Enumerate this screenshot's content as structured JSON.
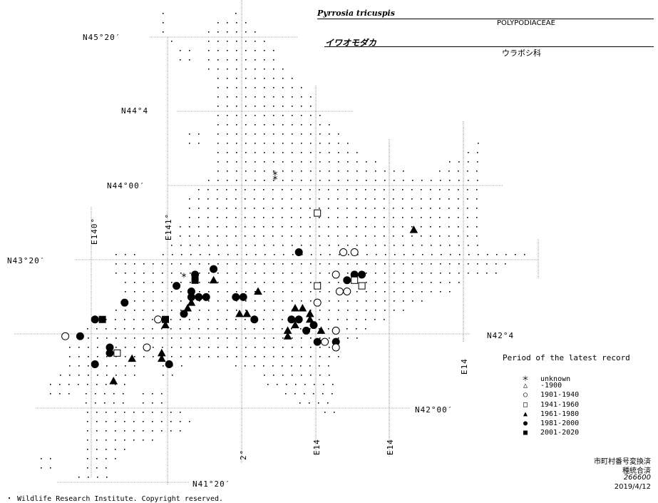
{
  "header": {
    "scientific_name": "Pyrrosia tricuspis",
    "family_latin": "POLYPODIACEAE",
    "japanese_name": "イワオモダカ",
    "family_japanese": "ウラボシ科"
  },
  "grid_labels": {
    "lat_45_20": "N45°20′",
    "lat_44_40": "N44°4",
    "lat_44_00": "N44°00′",
    "lat_43_20": "N43°20′",
    "lat_42_40": "N42°4",
    "lat_42_00": "N42°00′",
    "lat_41_20": "N41°20′",
    "lon_140": "E140°",
    "lon_141": "E141°",
    "lon_142": "2°",
    "lon_143": "E14",
    "lon_144": "E14",
    "lon_145": "E14"
  },
  "legend": {
    "title": "Period of the latest record",
    "items": [
      {
        "symbol": "asterisk",
        "glyph": "＊",
        "label": "unknown"
      },
      {
        "symbol": "open-triangle",
        "glyph": "△",
        "label": "-1900"
      },
      {
        "symbol": "open-circle",
        "glyph": "○",
        "label": "1901-1940"
      },
      {
        "symbol": "open-square",
        "glyph": "□",
        "label": "1941-1960"
      },
      {
        "symbol": "filled-triangle",
        "glyph": "▲",
        "label": "1961-1980"
      },
      {
        "symbol": "filled-circle",
        "glyph": "●",
        "label": "1981-2000"
      },
      {
        "symbol": "filled-square",
        "glyph": "■",
        "label": "2001-2020"
      }
    ]
  },
  "status": {
    "line1": "市町村番号変換済",
    "line2": "種統合済",
    "line3": "266600",
    "date": "2019/4/12"
  },
  "footer": {
    "copyright": "・ Wildlife Research Institute. Copyright reserved."
  },
  "records": [
    {
      "type": "asterisk",
      "lat": 44.09,
      "lon": 142.48
    },
    {
      "type": "asterisk",
      "lat": 44.05,
      "lon": 142.48
    },
    {
      "type": "asterisk",
      "lat": 43.18,
      "lon": 141.25
    },
    {
      "type": "filled-triangle",
      "lat": 43.6,
      "lon": 144.35
    },
    {
      "type": "open-square",
      "lat": 43.75,
      "lon": 143.05
    },
    {
      "type": "filled-circle",
      "lat": 43.4,
      "lon": 142.8
    },
    {
      "type": "open-circle",
      "lat": 43.4,
      "lon": 143.4
    },
    {
      "type": "open-circle",
      "lat": 43.4,
      "lon": 143.55
    },
    {
      "type": "filled-circle",
      "lat": 43.25,
      "lon": 141.65
    },
    {
      "type": "filled-circle",
      "lat": 43.2,
      "lon": 141.4
    },
    {
      "type": "filled-square",
      "lat": 43.15,
      "lon": 141.4
    },
    {
      "type": "filled-triangle",
      "lat": 43.15,
      "lon": 141.65
    },
    {
      "type": "filled-circle",
      "lat": 43.1,
      "lon": 141.15
    },
    {
      "type": "filled-circle",
      "lat": 43.05,
      "lon": 141.35
    },
    {
      "type": "filled-circle",
      "lat": 43.0,
      "lon": 141.35
    },
    {
      "type": "filled-circle",
      "lat": 43.0,
      "lon": 141.45
    },
    {
      "type": "filled-circle",
      "lat": 43.0,
      "lon": 141.55
    },
    {
      "type": "filled-triangle",
      "lat": 42.95,
      "lon": 141.35
    },
    {
      "type": "filled-triangle",
      "lat": 42.9,
      "lon": 141.3
    },
    {
      "type": "filled-circle",
      "lat": 42.85,
      "lon": 141.25
    },
    {
      "type": "filled-circle",
      "lat": 43.0,
      "lon": 141.95
    },
    {
      "type": "filled-circle",
      "lat": 43.0,
      "lon": 142.05
    },
    {
      "type": "filled-triangle",
      "lat": 43.05,
      "lon": 142.25
    },
    {
      "type": "open-circle",
      "lat": 43.2,
      "lon": 143.3
    },
    {
      "type": "filled-circle",
      "lat": 43.2,
      "lon": 143.55
    },
    {
      "type": "filled-circle",
      "lat": 43.2,
      "lon": 143.65
    },
    {
      "type": "filled-circle",
      "lat": 43.15,
      "lon": 143.45
    },
    {
      "type": "open-square",
      "lat": 43.15,
      "lon": 143.55
    },
    {
      "type": "open-square",
      "lat": 43.1,
      "lon": 143.05
    },
    {
      "type": "open-square",
      "lat": 43.1,
      "lon": 143.65
    },
    {
      "type": "open-circle",
      "lat": 43.05,
      "lon": 143.35
    },
    {
      "type": "open-circle",
      "lat": 43.05,
      "lon": 143.45
    },
    {
      "type": "open-circle",
      "lat": 42.95,
      "lon": 143.05
    },
    {
      "type": "filled-circle",
      "lat": 42.95,
      "lon": 140.45
    },
    {
      "type": "filled-triangle",
      "lat": 42.9,
      "lon": 142.75
    },
    {
      "type": "filled-triangle",
      "lat": 42.9,
      "lon": 142.85
    },
    {
      "type": "filled-triangle",
      "lat": 42.85,
      "lon": 142.0
    },
    {
      "type": "filled-triangle",
      "lat": 42.85,
      "lon": 142.1
    },
    {
      "type": "filled-triangle",
      "lat": 42.85,
      "lon": 142.95
    },
    {
      "type": "filled-circle",
      "lat": 42.8,
      "lon": 142.2
    },
    {
      "type": "filled-circle",
      "lat": 42.8,
      "lon": 142.7
    },
    {
      "type": "filled-circle",
      "lat": 42.8,
      "lon": 142.8
    },
    {
      "type": "filled-triangle",
      "lat": 42.8,
      "lon": 142.95
    },
    {
      "type": "filled-circle",
      "lat": 42.8,
      "lon": 140.05
    },
    {
      "type": "filled-square",
      "lat": 42.8,
      "lon": 140.15
    },
    {
      "type": "open-circle",
      "lat": 42.8,
      "lon": 140.9
    },
    {
      "type": "filled-square",
      "lat": 42.8,
      "lon": 141.0
    },
    {
      "type": "filled-triangle",
      "lat": 42.75,
      "lon": 141.0
    },
    {
      "type": "filled-triangle",
      "lat": 42.75,
      "lon": 142.75
    },
    {
      "type": "filled-circle",
      "lat": 42.75,
      "lon": 143.0
    },
    {
      "type": "filled-triangle",
      "lat": 42.7,
      "lon": 142.65
    },
    {
      "type": "filled-circle",
      "lat": 42.7,
      "lon": 142.9
    },
    {
      "type": "filled-triangle",
      "lat": 42.7,
      "lon": 143.1
    },
    {
      "type": "open-circle",
      "lat": 42.7,
      "lon": 143.3
    },
    {
      "type": "filled-triangle",
      "lat": 42.65,
      "lon": 142.65
    },
    {
      "type": "open-circle",
      "lat": 42.65,
      "lon": 139.65
    },
    {
      "type": "filled-circle",
      "lat": 42.65,
      "lon": 139.85
    },
    {
      "type": "filled-circle",
      "lat": 42.6,
      "lon": 143.05
    },
    {
      "type": "open-circle",
      "lat": 42.6,
      "lon": 143.15
    },
    {
      "type": "filled-circle",
      "lat": 42.6,
      "lon": 143.3
    },
    {
      "type": "open-circle",
      "lat": 42.55,
      "lon": 140.75
    },
    {
      "type": "filled-circle",
      "lat": 42.55,
      "lon": 140.25
    },
    {
      "type": "open-circle",
      "lat": 42.55,
      "lon": 143.3
    },
    {
      "type": "filled-circle",
      "lat": 42.5,
      "lon": 140.25
    },
    {
      "type": "open-square",
      "lat": 42.5,
      "lon": 140.35
    },
    {
      "type": "filled-triangle",
      "lat": 42.5,
      "lon": 140.95
    },
    {
      "type": "filled-triangle",
      "lat": 42.45,
      "lon": 140.55
    },
    {
      "type": "filled-triangle",
      "lat": 42.45,
      "lon": 140.95
    },
    {
      "type": "filled-circle",
      "lat": 42.4,
      "lon": 140.05
    },
    {
      "type": "filled-circle",
      "lat": 42.4,
      "lon": 141.05
    },
    {
      "type": "filled-triangle",
      "lat": 42.25,
      "lon": 140.3
    }
  ]
}
